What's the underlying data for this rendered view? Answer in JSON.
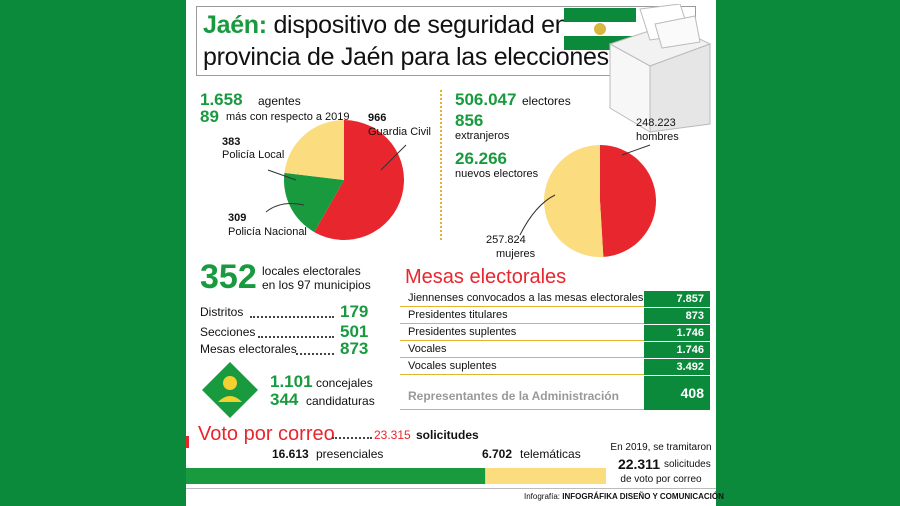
{
  "title": {
    "place": "Jaén:",
    "line1_rest": " dispositivo de seguridad en la",
    "line2": "provincia de Jaén para las elecciones"
  },
  "agents": {
    "total_value": "1.658",
    "total_label": "agentes",
    "delta_value": "89",
    "delta_label": "más con respecto a 2019"
  },
  "electors": {
    "total_value": "506.047",
    "total_label": "electores",
    "foreign_value": "856",
    "foreign_label": "extranjeros",
    "new_value": "26.266",
    "new_label": "nuevos electores"
  },
  "locales": {
    "value": "352",
    "label1": "locales electorales",
    "label2": "en los 97 municipios",
    "rows": [
      {
        "label": "Distritos",
        "value": "179"
      },
      {
        "label": "Secciones",
        "value": "501"
      },
      {
        "label": "Mesas electorales",
        "value": "873"
      }
    ]
  },
  "concejales": {
    "value1": "1.101",
    "label1": "concejales",
    "value2": "344",
    "label2": "candidaturas"
  },
  "mesas": {
    "title": "Mesas electorales",
    "rows": [
      {
        "label": "Jiennenses convocados a las mesas electorales",
        "value": "7.857"
      },
      {
        "label": "Presidentes titulares",
        "value": "873"
      },
      {
        "label": "Presidentes suplentes",
        "value": "1.746"
      },
      {
        "label": "Vocales",
        "value": "1.746"
      },
      {
        "label": "Vocales suplentes",
        "value": "3.492"
      }
    ],
    "admin_label": "Representantes de la Administración",
    "admin_value": "408"
  },
  "voto": {
    "title": "Voto por correo",
    "total_value": "23.315",
    "total_label": "solicitudes",
    "presencial_value": "16.613",
    "presencial_label": "presenciales",
    "telematic_value": "6.702",
    "telematic_label": "telemáticas",
    "note1": "En 2019, se tramitaron",
    "note_value": "22.311",
    "note2": "solicitudes",
    "note3": "de voto por correo"
  },
  "credit": {
    "prefix": "Infografía:",
    "name": "INFOGRÁFIKA DISEÑO Y COMUNICACIÓN"
  },
  "colors": {
    "background": "#0c8a3c",
    "green": "#1a9a3f",
    "red": "#e8262d",
    "yellow": "#fbdc7e"
  },
  "chart_data": [
    {
      "type": "pie",
      "labels": [
        "Guardia Civil",
        "Policía Nacional",
        "Policía Local"
      ],
      "values": [
        966,
        309,
        383
      ],
      "value_labels": [
        "966",
        "309",
        "383"
      ],
      "colors": [
        "#e8262d",
        "#1a9a3f",
        "#fbdc7e"
      ]
    },
    {
      "type": "pie",
      "labels": [
        "hombres",
        "mujeres"
      ],
      "values": [
        248223,
        257824
      ],
      "value_labels": [
        "248.223",
        "257.824"
      ],
      "colors": [
        "#e8262d",
        "#fbdc7e"
      ]
    },
    {
      "type": "bar",
      "orientation": "horizontal-stacked",
      "categories": [
        "presenciales",
        "telemáticas"
      ],
      "values": [
        16613,
        6702
      ],
      "colors": [
        "#1a9a3f",
        "#fbdc7e"
      ]
    }
  ]
}
